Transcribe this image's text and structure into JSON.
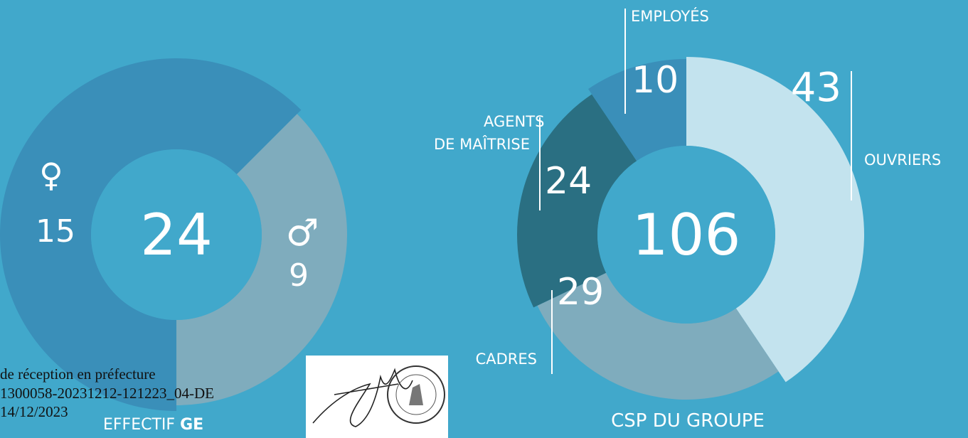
{
  "chart_data": [
    {
      "type": "donut",
      "title": "EFFECTIF",
      "title_bold": "GE",
      "total": 24,
      "categories": [
        "♀",
        "♂"
      ],
      "values": [
        15,
        9
      ],
      "colors": [
        "#3a8fb9",
        "#7facbd"
      ]
    },
    {
      "type": "donut",
      "title": "CSP DU GROUPE",
      "total": 106,
      "categories": [
        "OUVRIERS",
        "CADRES",
        "AGENTS DE MAÎTRISE",
        "EMPLOYÉS"
      ],
      "values": [
        43,
        29,
        24,
        10
      ],
      "colors": [
        "#c3e3ee",
        "#7facbd",
        "#2a6f82",
        "#3a8fb9"
      ]
    }
  ],
  "stamp": {
    "lines": [
      "de réception en préfecture",
      "1300058-20231212-121223_04-DE",
      "14/12/2023"
    ]
  }
}
